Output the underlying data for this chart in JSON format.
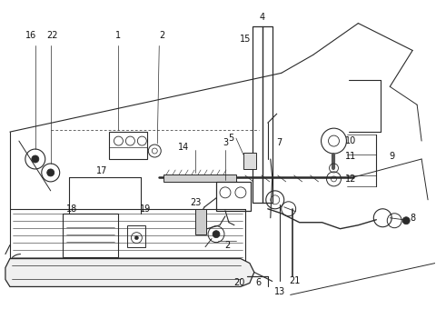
{
  "bg_color": "#ffffff",
  "line_color": "#2a2a2a",
  "text_color": "#111111",
  "font_size": 7.0
}
